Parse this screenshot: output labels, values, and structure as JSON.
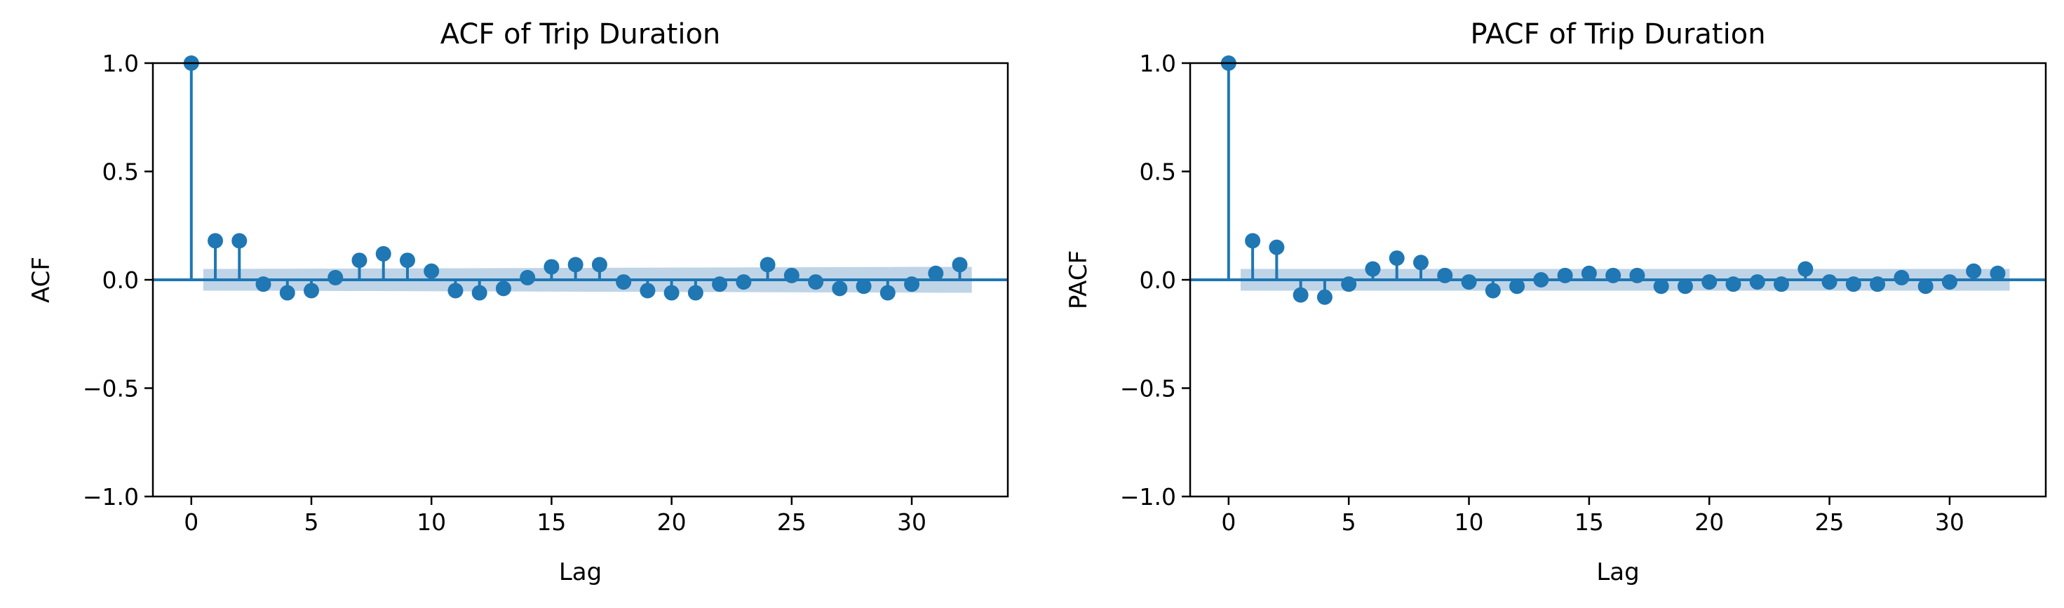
{
  "chart_data": [
    {
      "type": "stem",
      "title": "ACF of Trip Duration",
      "xlabel": "Lag",
      "ylabel": "ACF",
      "xlim": [
        -1.6,
        34
      ],
      "ylim": [
        -1.0,
        1.0
      ],
      "x_ticks": [
        0,
        5,
        10,
        15,
        20,
        25,
        30
      ],
      "x_tick_labels": [
        "0",
        "5",
        "10",
        "15",
        "20",
        "25",
        "30"
      ],
      "y_ticks": [
        -1.0,
        -0.5,
        0.0,
        0.5,
        1.0
      ],
      "y_tick_labels": [
        "−1.0",
        "−0.5",
        "0.0",
        "0.5",
        "1.0"
      ],
      "grid": false,
      "x": [
        0,
        1,
        2,
        3,
        4,
        5,
        6,
        7,
        8,
        9,
        10,
        11,
        12,
        13,
        14,
        15,
        16,
        17,
        18,
        19,
        20,
        21,
        22,
        23,
        24,
        25,
        26,
        27,
        28,
        29,
        30,
        31,
        32
      ],
      "values": [
        1.0,
        0.18,
        0.18,
        -0.02,
        -0.06,
        -0.05,
        0.01,
        0.09,
        0.12,
        0.09,
        0.04,
        -0.05,
        -0.06,
        -0.04,
        0.01,
        0.06,
        0.07,
        0.07,
        -0.01,
        -0.05,
        -0.06,
        -0.06,
        -0.02,
        -0.01,
        0.07,
        0.02,
        -0.01,
        -0.04,
        -0.03,
        -0.06,
        -0.02,
        0.03,
        0.07
      ],
      "confidence_band": [
        0.05,
        0.06
      ]
    },
    {
      "type": "stem",
      "title": "PACF of Trip Duration",
      "xlabel": "Lag",
      "ylabel": "PACF",
      "xlim": [
        -1.6,
        34
      ],
      "ylim": [
        -1.0,
        1.0
      ],
      "x_ticks": [
        0,
        5,
        10,
        15,
        20,
        25,
        30
      ],
      "x_tick_labels": [
        "0",
        "5",
        "10",
        "15",
        "20",
        "25",
        "30"
      ],
      "y_ticks": [
        -1.0,
        -0.5,
        0.0,
        0.5,
        1.0
      ],
      "y_tick_labels": [
        "−1.0",
        "−0.5",
        "0.0",
        "0.5",
        "1.0"
      ],
      "grid": false,
      "x": [
        0,
        1,
        2,
        3,
        4,
        5,
        6,
        7,
        8,
        9,
        10,
        11,
        12,
        13,
        14,
        15,
        16,
        17,
        18,
        19,
        20,
        21,
        22,
        23,
        24,
        25,
        26,
        27,
        28,
        29,
        30,
        31,
        32
      ],
      "values": [
        1.0,
        0.18,
        0.15,
        -0.07,
        -0.08,
        -0.02,
        0.05,
        0.1,
        0.08,
        0.02,
        -0.01,
        -0.05,
        -0.03,
        0.0,
        0.02,
        0.03,
        0.02,
        0.02,
        -0.03,
        -0.03,
        -0.01,
        -0.02,
        -0.01,
        -0.02,
        0.05,
        -0.01,
        -0.02,
        -0.02,
        0.01,
        -0.03,
        -0.01,
        0.04,
        0.03
      ],
      "confidence_band": [
        0.05,
        0.05
      ]
    }
  ],
  "colors": {
    "stem": "#1f77b4",
    "band": "#a9c5df",
    "axis": "#000000"
  }
}
